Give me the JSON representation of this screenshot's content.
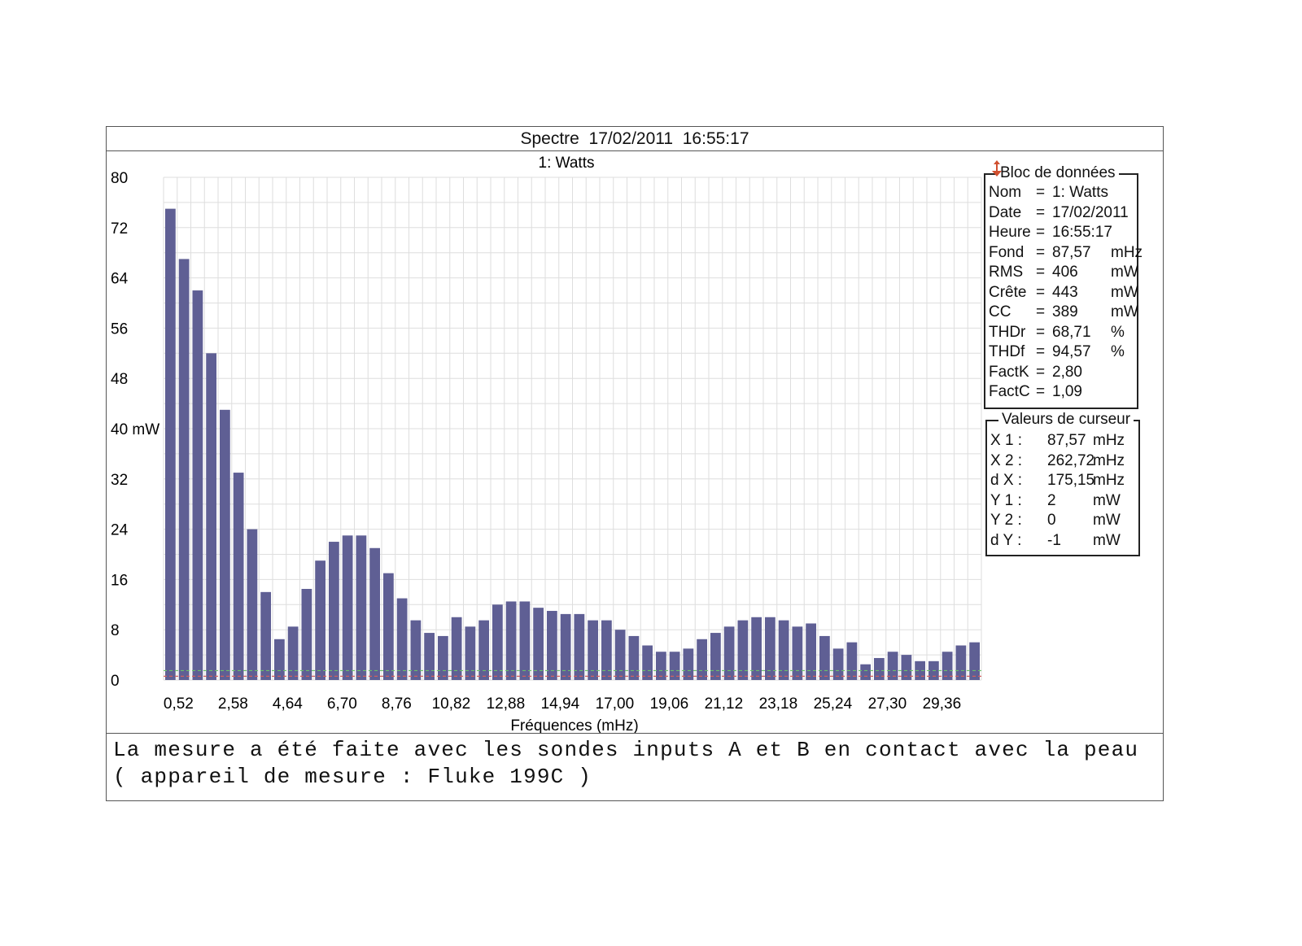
{
  "header": {
    "label": "Spectre",
    "date": "17/02/2011",
    "time": "16:55:17"
  },
  "chart_data": {
    "type": "bar",
    "title": "1: Watts",
    "xlabel": "Fréquences (mHz)",
    "ylabel": "mW",
    "ylim": [
      0,
      80
    ],
    "yticks": [
      0,
      8,
      16,
      24,
      32,
      40,
      48,
      56,
      64,
      72,
      80
    ],
    "ytick_labels": [
      "0",
      "8",
      "16",
      "24",
      "32",
      "40 mW",
      "48",
      "56",
      "64",
      "72",
      "80"
    ],
    "xtick_labels": [
      "0,52",
      "2,58",
      "4,64",
      "6,70",
      "8,76",
      "10,82",
      "12,88",
      "14,94",
      "17,00",
      "19,06",
      "21,12",
      "23,18",
      "25,24",
      "27,30",
      "29,36"
    ],
    "grid": true,
    "bar_color": "#5f5f94",
    "values": [
      75,
      67,
      62,
      52,
      43,
      33,
      24,
      14,
      6.5,
      8.5,
      14.5,
      19,
      22,
      23,
      23,
      21,
      17,
      13,
      9.5,
      7.5,
      7,
      10,
      8.5,
      9.5,
      12,
      12.5,
      12.5,
      11.5,
      11,
      10.5,
      10.5,
      9.5,
      9.5,
      8,
      7,
      5.5,
      4.5,
      4.5,
      5,
      6.5,
      7.5,
      8.5,
      9.5,
      10,
      10,
      9.5,
      8.5,
      9,
      7,
      5,
      6,
      2.5,
      3.5,
      4.5,
      4,
      3,
      3,
      4.5,
      5.5,
      6
    ]
  },
  "data_block": {
    "title": "Bloc de données",
    "rows": [
      {
        "label": "Nom",
        "eq": "=",
        "value": "1: Watts",
        "unit": ""
      },
      {
        "label": "Date",
        "eq": "=",
        "value": "17/02/2011",
        "unit": ""
      },
      {
        "label": "Heure",
        "eq": "=",
        "value": "16:55:17",
        "unit": ""
      },
      {
        "label": "Fond",
        "eq": "=",
        "value": "87,57",
        "unit": "mHz"
      },
      {
        "label": "RMS",
        "eq": "=",
        "value": "406",
        "unit": "mW"
      },
      {
        "label": "Crête",
        "eq": "=",
        "value": "443",
        "unit": "mW"
      },
      {
        "label": "CC",
        "eq": "=",
        "value": "389",
        "unit": "mW"
      },
      {
        "label": "THDr",
        "eq": "=",
        "value": "68,71",
        "unit": "%"
      },
      {
        "label": "THDf",
        "eq": "=",
        "value": "94,57",
        "unit": "%"
      },
      {
        "label": "FactK",
        "eq": "=",
        "value": "2,80",
        "unit": ""
      },
      {
        "label": "FactC",
        "eq": "=",
        "value": "1,09",
        "unit": ""
      }
    ]
  },
  "cursor_block": {
    "title": "Valeurs de curseur",
    "rows": [
      {
        "label": "X 1 :",
        "value": "87,57",
        "unit": "mHz"
      },
      {
        "label": "X 2 :",
        "value": "262,72",
        "unit": "mHz"
      },
      {
        "label": "d X :",
        "value": "175,15",
        "unit": "mHz"
      },
      {
        "label": "Y 1 :",
        "value": "2",
        "unit": "mW"
      },
      {
        "label": "Y 2 :",
        "value": "0",
        "unit": "mW"
      },
      {
        "label": "d Y :",
        "value": "-1",
        "unit": "mW"
      }
    ]
  },
  "note": "La mesure a été faite avec les sondes inputs A et B en contact avec la peau ( appareil de mesure : Fluke 199C )"
}
